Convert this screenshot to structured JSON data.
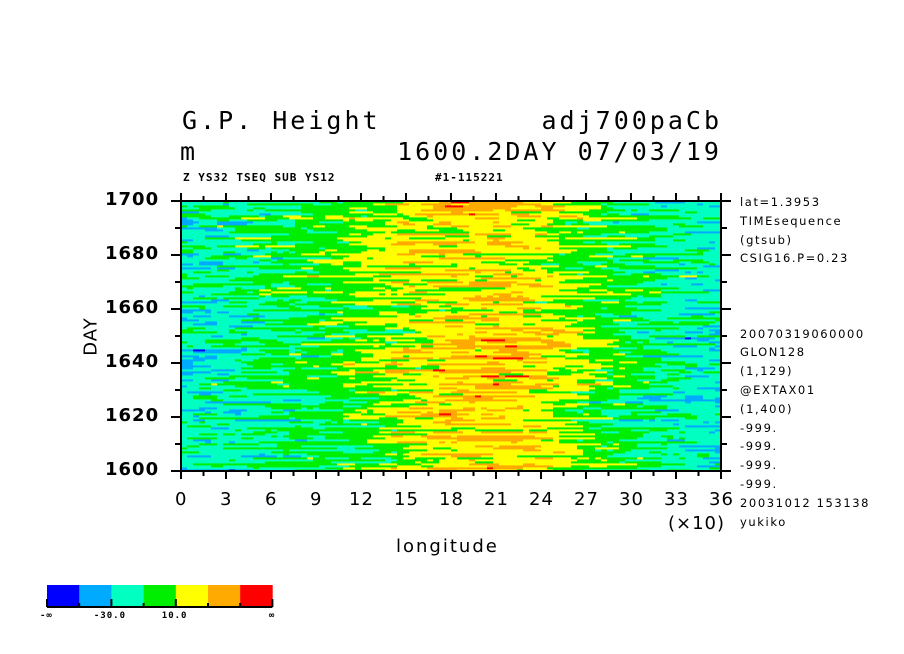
{
  "header": {
    "title_left": "G.P. Height",
    "title_right": "adj700paCb",
    "units": "m",
    "time_label": "1600.2DAY 07/03/19",
    "subtitle_left": "Z YS32 TSEQ SUB YS12",
    "subtitle_right": "#1-115221"
  },
  "side_info": [
    "lat=1.3953",
    "TIMEsequence",
    "(gtsub)",
    "CSIG16.P=0.23",
    "",
    "",
    "",
    "20070319060000",
    "GLON128",
    "(1,129)",
    "@EXTAX01",
    "(1,400)",
    "-999.",
    "-999.",
    "-999.",
    "-999.",
    "20031012 153138",
    "yukiko"
  ],
  "colorbar": {
    "colors": [
      "#0000ff",
      "#00aaff",
      "#00ffc0",
      "#00ee00",
      "#ffff00",
      "#ffaa00",
      "#ff0000"
    ],
    "boundaries": [
      -50,
      -30,
      -10,
      10,
      30,
      50
    ],
    "labels": [
      "-∞",
      "-30.0",
      "10.0",
      "∞"
    ]
  },
  "chart_data": {
    "type": "heatmap",
    "title": "G.P. Height adj700paCb",
    "xlabel": "longitude",
    "x_scale_label": "(×10)",
    "ylabel": "DAY",
    "xlim": [
      0,
      360
    ],
    "ylim": [
      1600,
      1700
    ],
    "x_tick_labels": [
      "0",
      "3",
      "6",
      "9",
      "12",
      "15",
      "18",
      "21",
      "24",
      "27",
      "30",
      "33",
      "36"
    ],
    "y_tick_labels": [
      "1600",
      "1620",
      "1640",
      "1660",
      "1680",
      "1700"
    ],
    "y_ticks": [
      1600,
      1620,
      1640,
      1660,
      1680,
      1700
    ],
    "grid": false,
    "coarse_x": [
      0,
      30,
      60,
      90,
      120,
      150,
      180,
      210,
      240,
      270,
      300,
      330,
      360
    ],
    "coarse_y": [
      1600,
      1610,
      1620,
      1630,
      1640,
      1650,
      1660,
      1670,
      1680,
      1690,
      1700
    ],
    "coarse_values": [
      [
        -22,
        -18,
        -14,
        -10,
        -2,
        10,
        28,
        32,
        22,
        8,
        -8,
        -18,
        -24
      ],
      [
        -22,
        -18,
        -12,
        -8,
        0,
        14,
        24,
        28,
        20,
        6,
        -8,
        -16,
        -22
      ],
      [
        -20,
        -16,
        -12,
        -6,
        4,
        16,
        28,
        24,
        14,
        2,
        -10,
        -16,
        -20
      ],
      [
        -26,
        -20,
        -12,
        -4,
        6,
        18,
        30,
        30,
        18,
        4,
        -10,
        -18,
        -24
      ],
      [
        -30,
        -22,
        -12,
        -2,
        8,
        20,
        32,
        34,
        26,
        10,
        -6,
        -18,
        -26
      ],
      [
        -24,
        -18,
        -10,
        -4,
        6,
        14,
        26,
        32,
        28,
        12,
        -6,
        -16,
        -22
      ],
      [
        -20,
        -16,
        -10,
        -4,
        2,
        10,
        18,
        24,
        20,
        8,
        -8,
        -16,
        -20
      ],
      [
        -18,
        -14,
        -8,
        0,
        10,
        20,
        26,
        28,
        18,
        6,
        -8,
        -16,
        -18
      ],
      [
        -20,
        -14,
        -8,
        2,
        12,
        22,
        24,
        20,
        12,
        0,
        -10,
        -16,
        -20
      ],
      [
        -20,
        -14,
        -8,
        -2,
        8,
        18,
        24,
        26,
        18,
        4,
        -10,
        -16,
        -20
      ],
      [
        -26,
        -18,
        -10,
        -4,
        4,
        16,
        30,
        32,
        22,
        6,
        -10,
        -20,
        -26
      ]
    ]
  }
}
